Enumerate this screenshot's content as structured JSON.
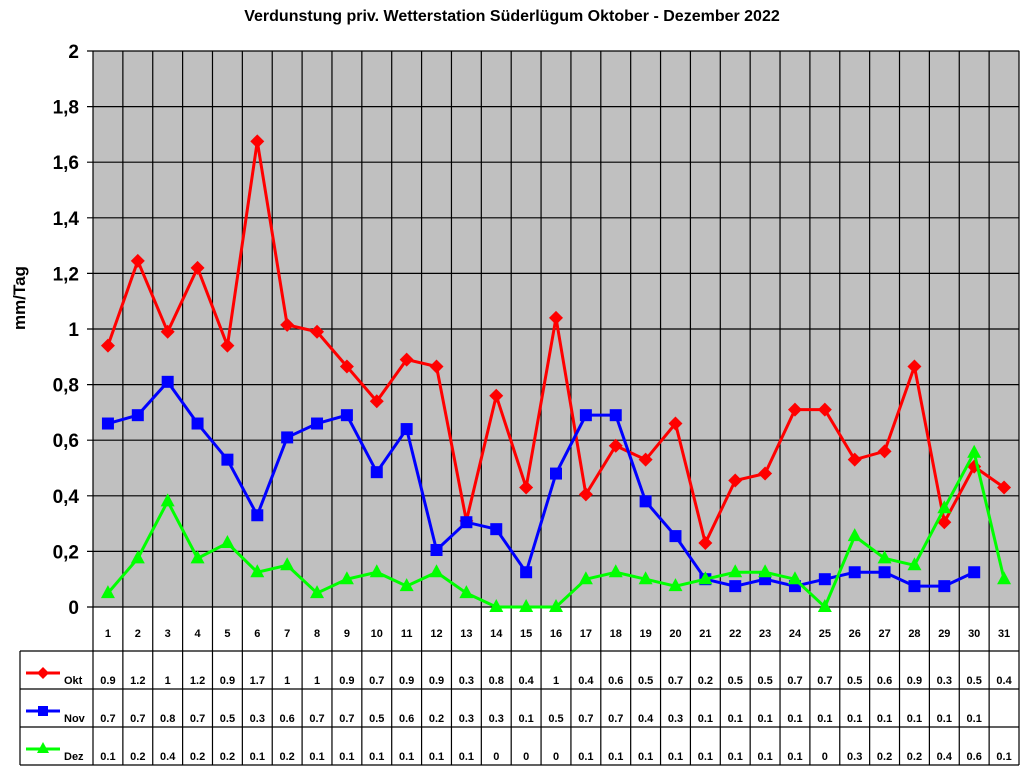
{
  "chart_data": {
    "type": "line",
    "title": "Verdunstung priv. Wetterstation Süderlügum Oktober - Dezember 2022",
    "xlabel": "",
    "ylabel": "mm/Tag",
    "ylim": [
      0,
      2
    ],
    "yticks": [
      "0",
      "0,2",
      "0,4",
      "0,6",
      "0,8",
      "1",
      "1,2",
      "1,4",
      "1,6",
      "1,8",
      "2"
    ],
    "grid": true,
    "legend_position": "data-table-left",
    "categories": [
      "1",
      "2",
      "3",
      "4",
      "5",
      "6",
      "7",
      "8",
      "9",
      "10",
      "11",
      "12",
      "13",
      "14",
      "15",
      "16",
      "17",
      "18",
      "19",
      "20",
      "21",
      "22",
      "23",
      "24",
      "25",
      "26",
      "27",
      "28",
      "29",
      "30",
      "31"
    ],
    "series": [
      {
        "name": "Okt",
        "color": "#ff0000",
        "marker": "diamond",
        "values": [
          0.94,
          1.245,
          0.99,
          1.22,
          0.94,
          1.675,
          1.015,
          0.99,
          0.865,
          0.74,
          0.89,
          0.865,
          0.31,
          0.76,
          0.43,
          1.04,
          0.405,
          0.58,
          0.53,
          0.66,
          0.23,
          0.455,
          0.48,
          0.71,
          0.71,
          0.53,
          0.56,
          0.865,
          0.305,
          0.505,
          0.43
        ],
        "table_values": [
          "0.9",
          "1.2",
          "1",
          "1.2",
          "0.9",
          "1.7",
          "1",
          "1",
          "0.9",
          "0.7",
          "0.9",
          "0.9",
          "0.3",
          "0.8",
          "0.4",
          "1",
          "0.4",
          "0.6",
          "0.5",
          "0.7",
          "0.2",
          "0.5",
          "0.5",
          "0.7",
          "0.7",
          "0.5",
          "0.6",
          "0.9",
          "0.3",
          "0.5",
          "0.4"
        ]
      },
      {
        "name": "Nov",
        "color": "#0000ff",
        "marker": "square",
        "values": [
          0.66,
          0.69,
          0.81,
          0.66,
          0.53,
          0.33,
          0.61,
          0.66,
          0.69,
          0.485,
          0.64,
          0.205,
          0.305,
          0.28,
          0.125,
          0.48,
          0.69,
          0.69,
          0.38,
          0.255,
          0.1,
          0.075,
          0.1,
          0.075,
          0.1,
          0.125,
          0.125,
          0.075,
          0.075,
          0.125,
          null
        ],
        "table_values": [
          "0.7",
          "0.7",
          "0.8",
          "0.7",
          "0.5",
          "0.3",
          "0.6",
          "0.7",
          "0.7",
          "0.5",
          "0.6",
          "0.2",
          "0.3",
          "0.3",
          "0.1",
          "0.5",
          "0.7",
          "0.7",
          "0.4",
          "0.3",
          "0.1",
          "0.1",
          "0.1",
          "0.1",
          "0.1",
          "0.1",
          "0.1",
          "0.1",
          "0.1",
          "0.1",
          ""
        ]
      },
      {
        "name": "Dez",
        "color": "#00ff00",
        "marker": "triangle",
        "values": [
          0.05,
          0.175,
          0.38,
          0.175,
          0.23,
          0.125,
          0.15,
          0.05,
          0.1,
          0.125,
          0.075,
          0.125,
          0.05,
          0,
          0,
          0,
          0.1,
          0.125,
          0.1,
          0.075,
          0.1,
          0.125,
          0.125,
          0.1,
          0,
          0.255,
          0.175,
          0.15,
          0.355,
          0.555,
          0.1
        ],
        "table_values": [
          "0.1",
          "0.2",
          "0.4",
          "0.2",
          "0.2",
          "0.1",
          "0.2",
          "0.1",
          "0.1",
          "0.1",
          "0.1",
          "0.1",
          "0.1",
          "0",
          "0",
          "0",
          "0.1",
          "0.1",
          "0.1",
          "0.1",
          "0.1",
          "0.1",
          "0.1",
          "0.1",
          "0",
          "0.3",
          "0.2",
          "0.2",
          "0.4",
          "0.6",
          "0.1"
        ]
      }
    ]
  },
  "colors": {
    "plot_background": "#c0c0c0",
    "gridline": "#000000",
    "okt": "#ff0000",
    "nov": "#0000ff",
    "dez": "#00ff00"
  }
}
